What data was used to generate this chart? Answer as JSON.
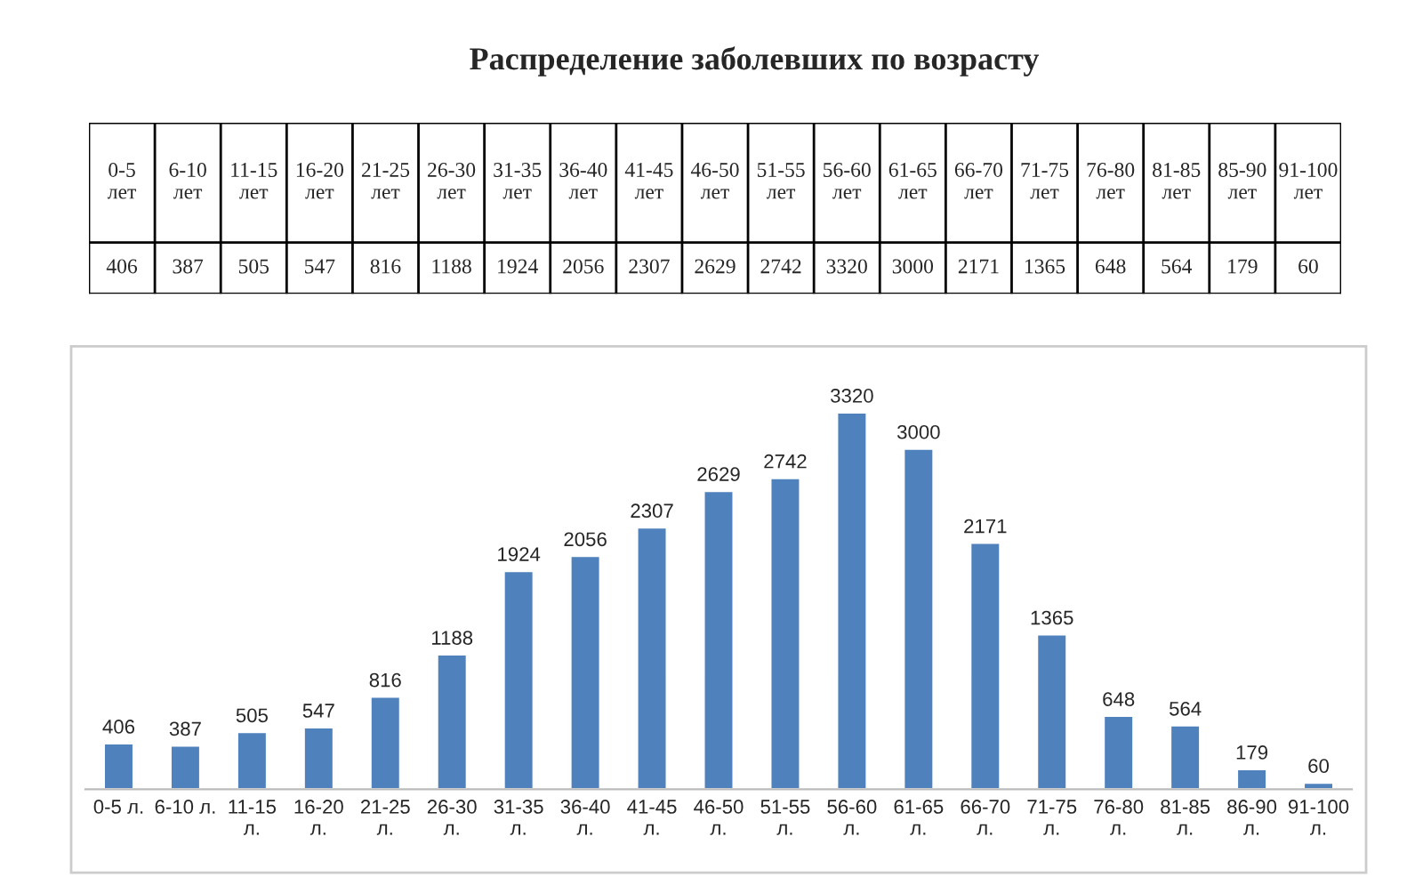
{
  "chart_data": {
    "type": "bar",
    "title": "Распределение заболевших по возрасту",
    "categories": [
      "0-5 л.",
      "6-10 л.",
      "11-15 л.",
      "16-20 л.",
      "21-25 л.",
      "26-30 л.",
      "31-35 л.",
      "36-40 л.",
      "41-45 л.",
      "46-50 л.",
      "51-55 л.",
      "56-60 л.",
      "61-65 л.",
      "66-70 л.",
      "71-75 л.",
      "76-80 л.",
      "81-85 л.",
      "86-90 л.",
      "91-100 л."
    ],
    "values": [
      406,
      387,
      505,
      547,
      816,
      1188,
      1924,
      2056,
      2307,
      2629,
      2742,
      3320,
      3000,
      2171,
      1365,
      648,
      564,
      179,
      60
    ],
    "value_labels": [
      "406",
      "387",
      "505",
      "547",
      "816",
      "1188",
      "1924",
      "2056",
      "2307",
      "2629",
      "2742",
      "3320",
      "3000",
      "2171",
      "1365",
      "648",
      "564",
      "179",
      "60"
    ],
    "color": "#4f81bd",
    "tick_labels": "x",
    "grid": false,
    "legend": false,
    "annotations": [
      "0-5 лет",
      "6-10 лет",
      "11-15 лет",
      "16-20 лет",
      "21-25 лет",
      "26-30 лет",
      "31-35 лет",
      "36-40 лет",
      "41-45 лет",
      "46-50 лет",
      "51-55 лет",
      "56-60 лет",
      "61-65 лет",
      "66-70 лет",
      "71-75 лет",
      "76-80 лет",
      "81-85 лет",
      "85-90 лет",
      "91-100 лет",
      "406",
      "387",
      "505",
      "547",
      "816",
      "1188",
      "1924",
      "2056",
      "2307",
      "2629",
      "2742",
      "3320",
      "3000",
      "2171",
      "1365",
      "648",
      "564",
      "179",
      "60"
    ]
  }
}
